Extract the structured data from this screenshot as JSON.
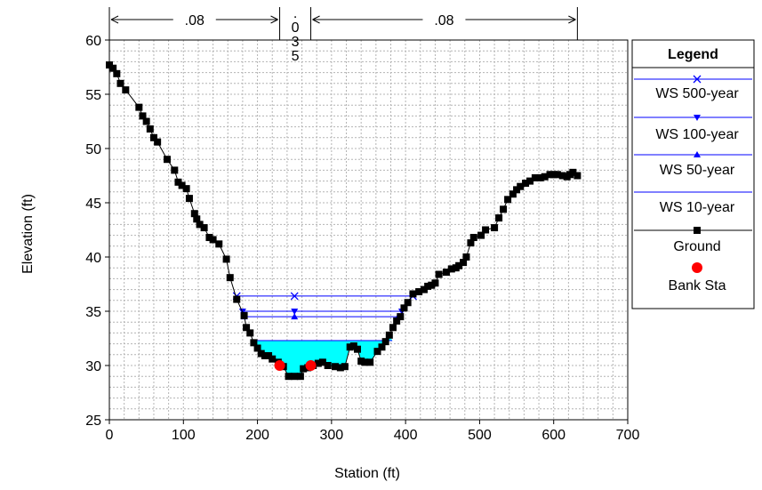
{
  "chart_data": {
    "type": "line",
    "xlabel": "Station (ft)",
    "ylabel": "Elevation (ft)",
    "xlim": [
      0,
      700
    ],
    "ylim": [
      25,
      60
    ],
    "x_ticks": [
      "0",
      "100",
      "200",
      "300",
      "400",
      "500",
      "600",
      "700"
    ],
    "y_ticks": [
      "25",
      "30",
      "35",
      "40",
      "45",
      "50",
      "55",
      "60"
    ],
    "x_tick_values": [
      0,
      100,
      200,
      300,
      400,
      500,
      600,
      700
    ],
    "y_tick_values": [
      25,
      30,
      35,
      40,
      45,
      50,
      55,
      60
    ],
    "grid": true,
    "legend_placement": "right",
    "legend_title": "Legend",
    "manning_n": [
      {
        "label": ".08",
        "from": 0,
        "to": 230
      },
      {
        "label": ".035",
        "from": 230,
        "to": 272
      },
      {
        "label": ".08",
        "from": 272,
        "to": 632
      }
    ],
    "series": [
      {
        "name": "WS 500-year",
        "kind": "ws",
        "color": "#0000ff",
        "marker": "x",
        "elevation": 36.4,
        "x_start": 172,
        "x_end": 410
      },
      {
        "name": "WS 100-year",
        "kind": "ws",
        "color": "#0000ff",
        "marker": "triangle-down",
        "elevation": 35.0,
        "x_start": 180,
        "x_end": 395
      },
      {
        "name": "WS 50-year",
        "kind": "ws",
        "color": "#0000ff",
        "marker": "triangle-up",
        "elevation": 34.5,
        "x_start": 182,
        "x_end": 390
      },
      {
        "name": "WS 10-year",
        "kind": "ws_fill",
        "color": "#0000ff",
        "fill": "#00ffff",
        "marker": "none",
        "elevation": 32.3,
        "x_start": 195,
        "x_end": 382
      },
      {
        "name": "Ground",
        "kind": "ground",
        "color": "#000000",
        "marker": "square",
        "x": [
          0,
          5,
          10,
          15,
          22,
          40,
          45,
          50,
          55,
          60,
          65,
          78,
          88,
          93,
          98,
          104,
          108,
          115,
          118,
          122,
          128,
          135,
          140,
          148,
          158,
          163,
          172,
          182,
          185,
          190,
          195,
          200,
          205,
          210,
          215,
          220,
          228,
          235,
          242,
          250,
          258,
          262,
          268,
          275,
          282,
          288,
          295,
          305,
          312,
          318,
          325,
          330,
          335,
          340,
          345,
          352,
          362,
          368,
          373,
          378,
          383,
          388,
          393,
          398,
          403,
          410,
          418,
          425,
          430,
          435,
          440,
          445,
          455,
          462,
          468,
          472,
          478,
          482,
          488,
          492,
          502,
          508,
          520,
          526,
          532,
          538,
          545,
          550,
          555,
          562,
          568,
          575,
          582,
          588,
          595,
          600,
          605,
          612,
          618,
          622,
          626,
          632
        ],
        "y": [
          57.7,
          57.4,
          56.9,
          56.0,
          55.4,
          53.8,
          53.0,
          52.5,
          51.8,
          51.0,
          50.6,
          49.0,
          48.0,
          46.9,
          46.6,
          46.3,
          45.4,
          44.0,
          43.5,
          43.0,
          42.7,
          41.8,
          41.6,
          41.2,
          39.8,
          38.1,
          36.1,
          34.6,
          33.5,
          33.0,
          32.1,
          31.6,
          31.1,
          30.9,
          30.9,
          30.6,
          30.3,
          29.9,
          29.0,
          29.0,
          29.0,
          29.7,
          29.8,
          30.0,
          30.2,
          30.3,
          30.0,
          29.9,
          29.8,
          29.9,
          31.7,
          31.8,
          31.5,
          30.4,
          30.3,
          30.3,
          31.3,
          31.7,
          32.2,
          32.8,
          33.5,
          34.1,
          34.5,
          35.3,
          35.8,
          36.6,
          36.8,
          37.0,
          37.3,
          37.4,
          37.6,
          38.4,
          38.6,
          38.9,
          39.0,
          39.2,
          39.5,
          40.0,
          41.3,
          41.8,
          42.0,
          42.5,
          42.7,
          43.6,
          44.4,
          45.3,
          45.8,
          46.2,
          46.5,
          46.8,
          47.0,
          47.3,
          47.3,
          47.4,
          47.6,
          47.6,
          47.6,
          47.5,
          47.4,
          47.6,
          47.8,
          47.5
        ]
      },
      {
        "name": "Bank Sta",
        "kind": "bank",
        "color": "#ff0000",
        "marker": "circle",
        "x": [
          230,
          272
        ],
        "y": [
          30.0,
          30.0
        ]
      }
    ]
  }
}
